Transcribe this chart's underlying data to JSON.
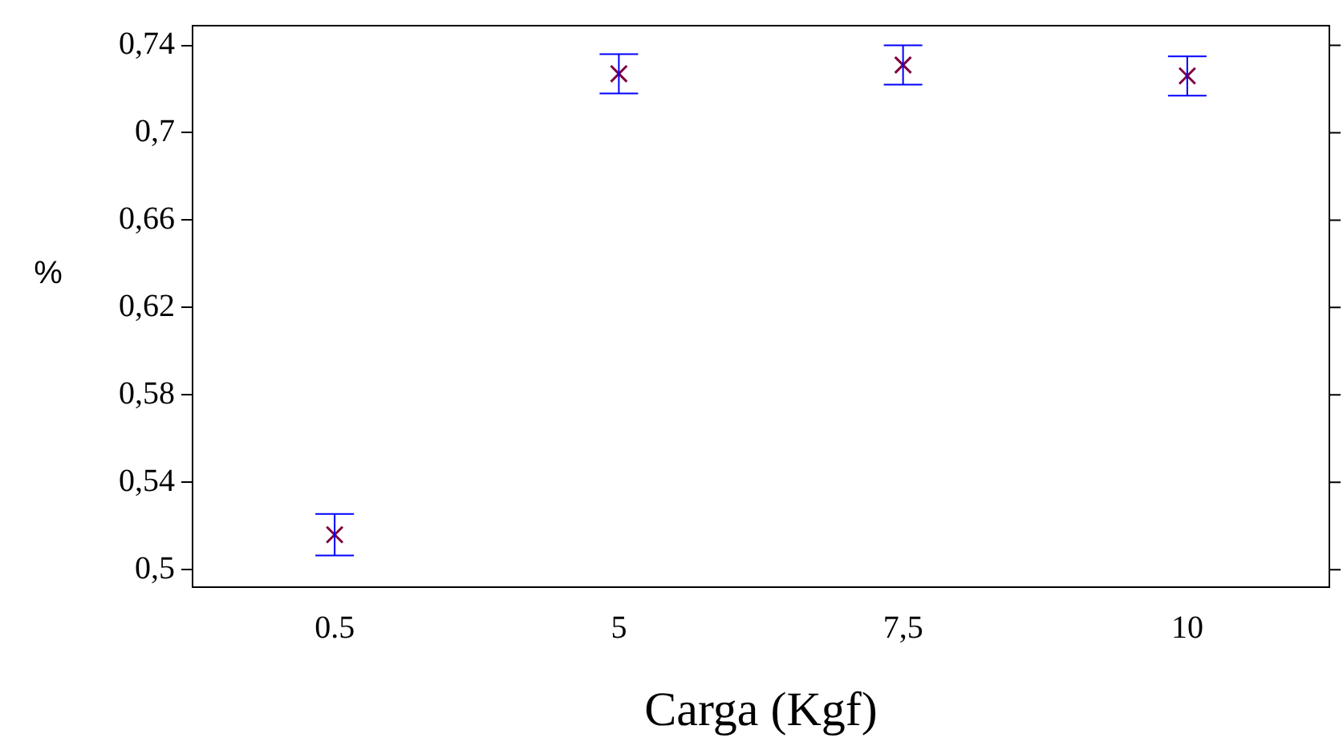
{
  "chart_data": {
    "type": "scatter",
    "xlabel": "Carga (Kgf)",
    "ylabel": "%",
    "categories": [
      "0.5",
      "5",
      "7,5",
      "10"
    ],
    "series": [
      {
        "color": "#800040",
        "values": [
          0.516,
          0.727,
          0.731,
          0.726
        ],
        "errors": [
          0.0095,
          0.009,
          0.009,
          0.009
        ]
      }
    ],
    "ylim": [
      0.492,
      0.749
    ],
    "yticks": [
      {
        "value": 0.5,
        "label": "0,5"
      },
      {
        "value": 0.54,
        "label": "0,54"
      },
      {
        "value": 0.58,
        "label": "0,58"
      },
      {
        "value": 0.62,
        "label": "0,62"
      },
      {
        "value": 0.66,
        "label": "0,66"
      },
      {
        "value": 0.7,
        "label": "0,7"
      },
      {
        "value": 0.74,
        "label": "0,74"
      }
    ],
    "grid": false,
    "legend": false,
    "marker": "cross"
  }
}
